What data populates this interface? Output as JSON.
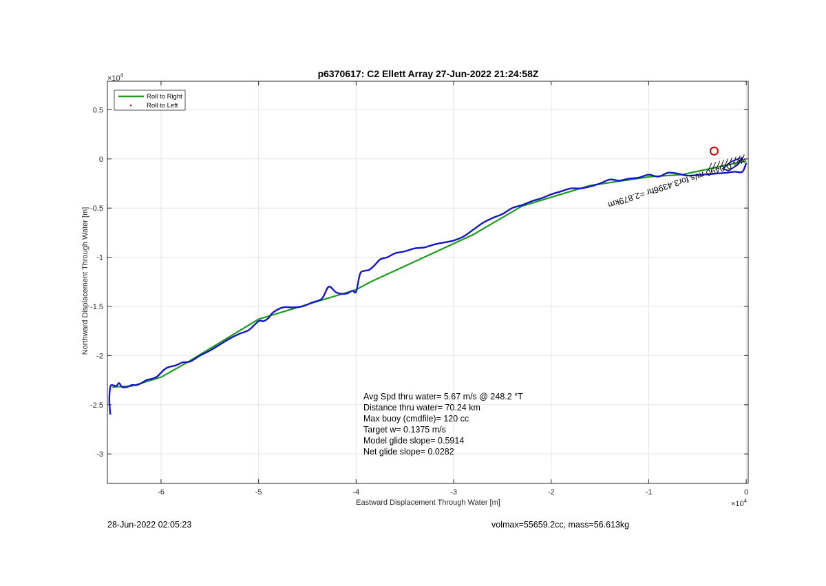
{
  "chart_data": {
    "type": "line",
    "title": "p6370617: C2 Ellett Array 27-Jun-2022 21:24:58Z",
    "xlabel": "Eastward Displacement Through Water [m]",
    "ylabel": "Northward Displacement Through Water [m]",
    "x_exponent": "×10^4",
    "y_exponent": "×10^4",
    "xlim": [
      -65500,
      200
    ],
    "ylim": [
      -33000,
      7900
    ],
    "x_ticks": [
      -60000,
      -50000,
      -40000,
      -30000,
      -20000,
      -10000,
      0
    ],
    "x_tick_labels": [
      "-6",
      "-5",
      "-4",
      "-3",
      "-2",
      "-1",
      "0"
    ],
    "y_ticks": [
      5000,
      0,
      -5000,
      -10000,
      -15000,
      -20000,
      -25000,
      -30000
    ],
    "y_tick_labels": [
      "0.5",
      "0",
      "-0.5",
      "-1",
      "-1.5",
      "-2",
      "-2.5",
      "-3"
    ],
    "grid": true,
    "legend_position": "top-left",
    "colors": {
      "roll_right": "#1a9c1a",
      "roll_left": "#e0002a",
      "track": "#1414c8",
      "start_marker": "#d40000",
      "current_arrow": "#000000"
    },
    "series": [
      {
        "name": "Roll to Right",
        "style": "line",
        "x": [
          0,
          -6600,
          -9800,
          -16000,
          -23000,
          -28000,
          -38500,
          -40000,
          -50000,
          -57500,
          -60000,
          -63000,
          -65000
        ],
        "y": [
          -200,
          -1600,
          -1800,
          -2700,
          -4800,
          -7700,
          -12500,
          -13300,
          -16300,
          -20800,
          -22200,
          -23100,
          -23200
        ]
      },
      {
        "name": "Roll to Left",
        "style": "markers",
        "x": [],
        "y": []
      },
      {
        "name": "",
        "style": "line",
        "x": [
          0,
          -400,
          -1200,
          -2000,
          -3200,
          -4500,
          -6000,
          -7000,
          -8000,
          -9000,
          -10000,
          -11000,
          -12000,
          -13000,
          -14000,
          -15000,
          -16000,
          -17000,
          -18000,
          -19000,
          -20000,
          -21000,
          -22000,
          -23000,
          -24000,
          -25000,
          -26000,
          -27000,
          -28000,
          -29000,
          -30000,
          -31000,
          -32000,
          -33000,
          -34000,
          -35000,
          -36000,
          -36800,
          -37500,
          -38000,
          -38300,
          -38700,
          -39200,
          -39600,
          -40000,
          -40400,
          -41000,
          -42000,
          -42800,
          -43500,
          -44500,
          -45500,
          -46500,
          -47500,
          -48500,
          -49000,
          -49500,
          -50000,
          -51000,
          -52000,
          -53000,
          -54000,
          -55000,
          -56000,
          -57000,
          -57800,
          -58500,
          -59500,
          -60500,
          -61500,
          -62000,
          -62500,
          -63000,
          -63500,
          -64000,
          -64300,
          -64600,
          -65000,
          -65200,
          -65300,
          -65200
        ],
        "y": [
          -400,
          -1300,
          -1300,
          -1400,
          -1500,
          -1600,
          -1700,
          -1500,
          -1400,
          -1800,
          -1600,
          -1900,
          -2000,
          -2200,
          -2100,
          -2500,
          -2800,
          -3000,
          -3000,
          -3300,
          -3600,
          -4000,
          -4300,
          -4700,
          -5000,
          -5600,
          -6000,
          -6500,
          -7200,
          -7900,
          -8300,
          -8500,
          -8700,
          -9000,
          -9100,
          -9400,
          -9600,
          -10000,
          -10200,
          -10700,
          -11000,
          -11300,
          -11400,
          -11700,
          -13500,
          -13400,
          -13700,
          -13600,
          -13000,
          -14200,
          -14600,
          -15000,
          -15100,
          -15100,
          -15600,
          -16200,
          -16500,
          -16500,
          -17400,
          -17800,
          -18300,
          -18900,
          -19500,
          -20000,
          -20600,
          -20700,
          -21000,
          -21300,
          -22200,
          -22500,
          -22800,
          -23000,
          -23000,
          -23200,
          -23200,
          -22800,
          -23100,
          -23000,
          -23200,
          -24500,
          -26000
        ]
      }
    ],
    "annotations": {
      "rotated_text": "w= 0.0490 m/s for3.4396hr =2.879km",
      "stats": [
        "Avg Spd thru water=  5.67 m/s @ 248.2 °T",
        "Distance thru water= 70.24 km",
        "Max buoy (cmdfile)= 120 cc",
        "Target w= 0.1375 m/s",
        "Model glide slope= 0.5914",
        "Net glide slope= 0.0282"
      ],
      "start_circle": {
        "x": -3300,
        "y": 800
      }
    },
    "footer_left": "28-Jun-2022 02:05:23",
    "footer_right": "volmax=55659.2cc, mass=56.613kg"
  }
}
